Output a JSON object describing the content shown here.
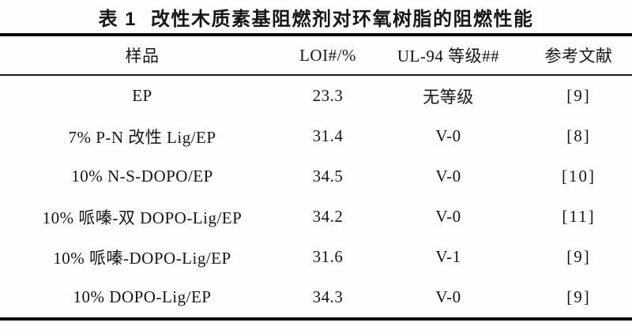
{
  "table": {
    "caption": {
      "label": "表 1",
      "text": "改性木质素基阻燃剂对环氧树脂的阻燃性能"
    },
    "columns": [
      "样品",
      "LOI#/%",
      "UL-94 等级##",
      "参考文献"
    ],
    "rows": [
      {
        "sample": "EP",
        "loi": "23.3",
        "ul94": "无等级",
        "ref": "[9]"
      },
      {
        "sample": "7% P-N 改性 Lig/EP",
        "loi": "31.4",
        "ul94": "V-0",
        "ref": "[8]"
      },
      {
        "sample": "10% N-S-DOPO/EP",
        "loi": "34.5",
        "ul94": "V-0",
        "ref": "[10]"
      },
      {
        "sample": "10% 哌嗪-双 DOPO-Lig/EP",
        "loi": "34.2",
        "ul94": "V-0",
        "ref": "[11]"
      },
      {
        "sample": "10% 哌嗪-DOPO-Lig/EP",
        "loi": "31.6",
        "ul94": "V-1",
        "ref": "[9]"
      },
      {
        "sample": "10% DOPO-Lig/EP",
        "loi": "34.3",
        "ul94": "V-0",
        "ref": "[9]"
      }
    ]
  },
  "colors": {
    "background": "#fefefe",
    "text": "#161616",
    "rule": "#0a0a0a"
  }
}
